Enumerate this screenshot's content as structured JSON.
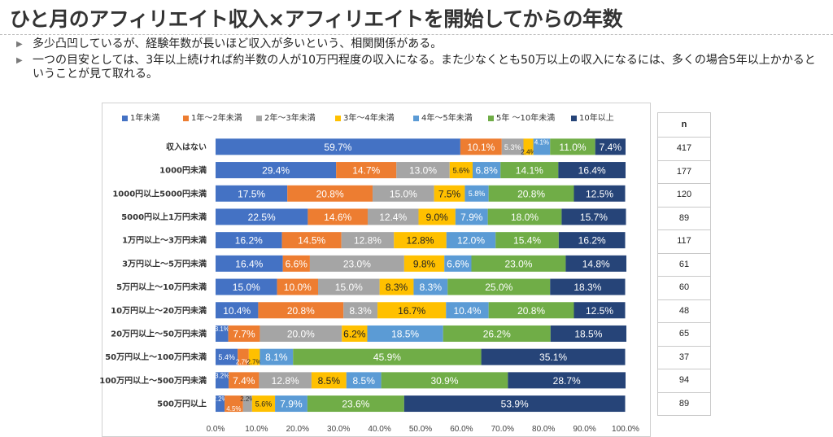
{
  "title": "ひと月のアフィリエイト収入×アフィリエイトを開始してからの年数",
  "bullets": [
    "多少凸凹しているが、経験年数が長いほど収入が多いという、相関関係がある。",
    "一つの目安としては、3年以上続ければ約半数の人が10万円程度の収入になる。また少なくとも50万以上の収入になるには、多くの場合5年以上かかるということが見て取れる。"
  ],
  "n_table": {
    "header": "n",
    "values": [
      "417",
      "177",
      "120",
      "89",
      "117",
      "61",
      "60",
      "48",
      "65",
      "37",
      "94",
      "89"
    ]
  },
  "chart_data": {
    "type": "bar",
    "orientation": "horizontal",
    "stacked": true,
    "legend_position": "top",
    "xlim": [
      0,
      100
    ],
    "x_ticks": [
      "0.0%",
      "10.0%",
      "20.0%",
      "30.0%",
      "40.0%",
      "50.0%",
      "60.0%",
      "70.0%",
      "80.0%",
      "90.0%",
      "100.0%"
    ],
    "categories": [
      "収入はない",
      "1000円未満",
      "1000円以上5000円未満",
      "5000円以上1万円未満",
      "1万円以上～3万円未満",
      "3万円以上～5万円未満",
      "5万円以上～10万円未満",
      "10万円以上～20万円未満",
      "20万円以上～50万円未満",
      "50万円以上～100万円未満",
      "100万円以上～500万円未満",
      "500万円以上"
    ],
    "series": [
      {
        "name": "1年未満",
        "color": "#4472C4",
        "values": [
          59.7,
          29.4,
          17.5,
          22.5,
          16.2,
          16.4,
          15.0,
          10.4,
          3.1,
          5.4,
          3.2,
          2.2
        ]
      },
      {
        "name": "1年～2年未満",
        "color": "#ED7D31",
        "values": [
          10.1,
          14.7,
          20.8,
          14.6,
          14.5,
          6.6,
          10.0,
          20.8,
          7.7,
          2.7,
          7.4,
          4.5
        ]
      },
      {
        "name": "2年～3年未満",
        "color": "#A5A5A5",
        "values": [
          5.3,
          13.0,
          15.0,
          12.4,
          12.8,
          23.0,
          15.0,
          8.3,
          20.0,
          0,
          12.8,
          2.2
        ]
      },
      {
        "name": "3年～4年未満",
        "color": "#FFC000",
        "values": [
          2.4,
          5.6,
          7.5,
          9.0,
          12.8,
          9.8,
          8.3,
          16.7,
          6.2,
          2.7,
          8.5,
          5.6
        ]
      },
      {
        "name": "4年～5年未満",
        "color": "#5B9BD5",
        "values": [
          4.1,
          6.8,
          5.8,
          7.9,
          12.0,
          6.6,
          8.3,
          10.4,
          18.5,
          8.1,
          8.5,
          7.9
        ]
      },
      {
        "name": "5年 ～10年未満",
        "color": "#70AD47",
        "values": [
          11.0,
          14.1,
          20.8,
          18.0,
          15.4,
          23.0,
          25.0,
          20.8,
          26.2,
          45.9,
          30.9,
          23.6
        ]
      },
      {
        "name": "10年以上",
        "color": "#264478",
        "values": [
          7.4,
          16.4,
          12.5,
          15.7,
          16.2,
          14.8,
          18.3,
          12.5,
          18.5,
          35.1,
          28.7,
          53.9
        ]
      }
    ],
    "labels": [
      [
        "59.7%",
        "10.1%",
        "5.3%",
        "2.4%",
        "4.1%",
        "11.0%",
        "7.4%"
      ],
      [
        "29.4%",
        "14.7%",
        "13.0%",
        "5.6%",
        "6.8%",
        "14.1%",
        "16.4%"
      ],
      [
        "17.5%",
        "20.8%",
        "15.0%",
        "7.5%",
        "5.8%",
        "20.8%",
        "12.5%"
      ],
      [
        "22.5%",
        "14.6%",
        "12.4%",
        "9.0%",
        "7.9%",
        "18.0%",
        "15.7%"
      ],
      [
        "16.2%",
        "14.5%",
        "12.8%",
        "12.8%",
        "12.0%",
        "15.4%",
        "16.2%"
      ],
      [
        "16.4%",
        "6.6%",
        "23.0%",
        "9.8%",
        "6.6%",
        "23.0%",
        "14.8%"
      ],
      [
        "15.0%",
        "10.0%",
        "15.0%",
        "8.3%",
        "8.3%",
        "25.0%",
        "18.3%"
      ],
      [
        "10.4%",
        "20.8%",
        "8.3%",
        "16.7%",
        "10.4%",
        "20.8%",
        "12.5%"
      ],
      [
        "3.1%",
        "7.7%",
        "20.0%",
        "6.2%",
        "18.5%",
        "26.2%",
        "18.5%"
      ],
      [
        "5.4%",
        "2.7%",
        "",
        "2.7%",
        "8.1%",
        "45.9%",
        "35.1%"
      ],
      [
        "3.2%",
        "7.4%",
        "12.8%",
        "8.5%",
        "8.5%",
        "30.9%",
        "28.7%"
      ],
      [
        "2.2%",
        "4.5%",
        "2.2%",
        "5.6%",
        "7.9%",
        "23.6%",
        "53.9%"
      ]
    ]
  }
}
